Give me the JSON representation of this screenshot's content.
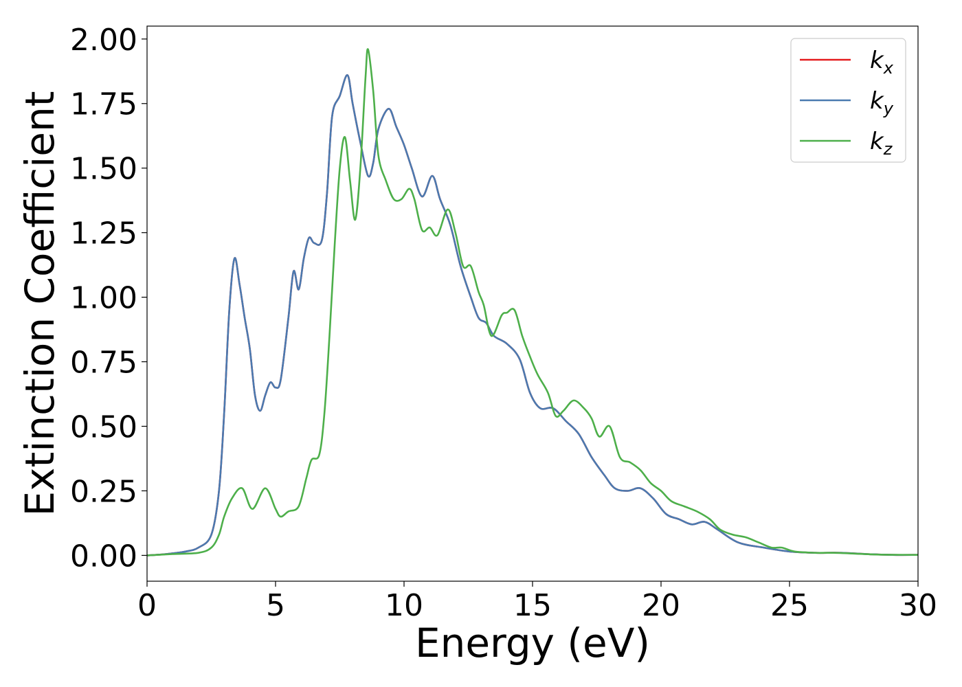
{
  "chart_data": {
    "type": "line",
    "xlabel": "Energy (eV)",
    "ylabel": "Extinction Coefficient",
    "xlim": [
      0,
      30
    ],
    "ylim": [
      -0.1,
      2.05
    ],
    "xticks": [
      0,
      5,
      10,
      15,
      20,
      25,
      30
    ],
    "xtick_labels": [
      "0",
      "5",
      "10",
      "15",
      "20",
      "25",
      "30"
    ],
    "yticks": [
      0,
      0.25,
      0.5,
      0.75,
      1.0,
      1.25,
      1.5,
      1.75,
      2.0
    ],
    "ytick_labels": [
      "0.00",
      "0.25",
      "0.50",
      "0.75",
      "1.00",
      "1.25",
      "1.50",
      "1.75",
      "2.00"
    ],
    "grid": false,
    "legend_position": "top-right",
    "series": [
      {
        "name": "k_x",
        "label_main": "k",
        "label_sub": "x",
        "color": "#e41a1c",
        "points": [
          [
            0,
            0
          ],
          [
            0.5,
            0.003
          ],
          [
            1.0,
            0.008
          ],
          [
            1.5,
            0.015
          ],
          [
            2.0,
            0.03
          ],
          [
            2.5,
            0.08
          ],
          [
            2.8,
            0.25
          ],
          [
            3.0,
            0.55
          ],
          [
            3.2,
            0.95
          ],
          [
            3.4,
            1.15
          ],
          [
            3.6,
            1.05
          ],
          [
            3.8,
            0.92
          ],
          [
            4.0,
            0.8
          ],
          [
            4.2,
            0.62
          ],
          [
            4.4,
            0.56
          ],
          [
            4.6,
            0.62
          ],
          [
            4.8,
            0.67
          ],
          [
            5.0,
            0.65
          ],
          [
            5.2,
            0.68
          ],
          [
            5.5,
            0.92
          ],
          [
            5.7,
            1.1
          ],
          [
            5.9,
            1.03
          ],
          [
            6.1,
            1.15
          ],
          [
            6.3,
            1.23
          ],
          [
            6.5,
            1.21
          ],
          [
            6.8,
            1.22
          ],
          [
            7.0,
            1.4
          ],
          [
            7.2,
            1.7
          ],
          [
            7.5,
            1.78
          ],
          [
            7.8,
            1.86
          ],
          [
            8.0,
            1.75
          ],
          [
            8.3,
            1.6
          ],
          [
            8.6,
            1.47
          ],
          [
            8.8,
            1.52
          ],
          [
            9.0,
            1.65
          ],
          [
            9.4,
            1.73
          ],
          [
            9.7,
            1.66
          ],
          [
            10.0,
            1.59
          ],
          [
            10.3,
            1.5
          ],
          [
            10.7,
            1.39
          ],
          [
            11.1,
            1.47
          ],
          [
            11.4,
            1.38
          ],
          [
            11.8,
            1.28
          ],
          [
            12.2,
            1.12
          ],
          [
            12.6,
            1.0
          ],
          [
            12.9,
            0.92
          ],
          [
            13.2,
            0.9
          ],
          [
            13.5,
            0.85
          ],
          [
            14.0,
            0.82
          ],
          [
            14.5,
            0.76
          ],
          [
            14.9,
            0.63
          ],
          [
            15.3,
            0.57
          ],
          [
            15.8,
            0.57
          ],
          [
            16.3,
            0.52
          ],
          [
            16.8,
            0.47
          ],
          [
            17.3,
            0.38
          ],
          [
            17.8,
            0.31
          ],
          [
            18.2,
            0.26
          ],
          [
            18.7,
            0.25
          ],
          [
            19.2,
            0.26
          ],
          [
            19.7,
            0.22
          ],
          [
            20.2,
            0.16
          ],
          [
            20.7,
            0.14
          ],
          [
            21.2,
            0.12
          ],
          [
            21.7,
            0.13
          ],
          [
            22.2,
            0.1
          ],
          [
            23.0,
            0.05
          ],
          [
            24.0,
            0.03
          ],
          [
            25.0,
            0.015
          ],
          [
            26.0,
            0.01
          ],
          [
            27.0,
            0.01
          ],
          [
            28.0,
            0.005
          ],
          [
            29.0,
            0.002
          ],
          [
            30.0,
            0.002
          ]
        ]
      },
      {
        "name": "k_y",
        "label_main": "k",
        "label_sub": "y",
        "color": "#4a7ab0",
        "points": [
          [
            0,
            0
          ],
          [
            0.5,
            0.003
          ],
          [
            1.0,
            0.008
          ],
          [
            1.5,
            0.015
          ],
          [
            2.0,
            0.03
          ],
          [
            2.5,
            0.08
          ],
          [
            2.8,
            0.25
          ],
          [
            3.0,
            0.55
          ],
          [
            3.2,
            0.95
          ],
          [
            3.4,
            1.15
          ],
          [
            3.6,
            1.05
          ],
          [
            3.8,
            0.92
          ],
          [
            4.0,
            0.8
          ],
          [
            4.2,
            0.62
          ],
          [
            4.4,
            0.56
          ],
          [
            4.6,
            0.62
          ],
          [
            4.8,
            0.67
          ],
          [
            5.0,
            0.65
          ],
          [
            5.2,
            0.68
          ],
          [
            5.5,
            0.92
          ],
          [
            5.7,
            1.1
          ],
          [
            5.9,
            1.03
          ],
          [
            6.1,
            1.15
          ],
          [
            6.3,
            1.23
          ],
          [
            6.5,
            1.21
          ],
          [
            6.8,
            1.22
          ],
          [
            7.0,
            1.4
          ],
          [
            7.2,
            1.7
          ],
          [
            7.5,
            1.78
          ],
          [
            7.8,
            1.86
          ],
          [
            8.0,
            1.75
          ],
          [
            8.3,
            1.6
          ],
          [
            8.6,
            1.47
          ],
          [
            8.8,
            1.52
          ],
          [
            9.0,
            1.65
          ],
          [
            9.4,
            1.73
          ],
          [
            9.7,
            1.66
          ],
          [
            10.0,
            1.59
          ],
          [
            10.3,
            1.5
          ],
          [
            10.7,
            1.39
          ],
          [
            11.1,
            1.47
          ],
          [
            11.4,
            1.38
          ],
          [
            11.8,
            1.28
          ],
          [
            12.2,
            1.12
          ],
          [
            12.6,
            1.0
          ],
          [
            12.9,
            0.92
          ],
          [
            13.2,
            0.9
          ],
          [
            13.5,
            0.85
          ],
          [
            14.0,
            0.82
          ],
          [
            14.5,
            0.76
          ],
          [
            14.9,
            0.63
          ],
          [
            15.3,
            0.57
          ],
          [
            15.8,
            0.57
          ],
          [
            16.3,
            0.52
          ],
          [
            16.8,
            0.47
          ],
          [
            17.3,
            0.38
          ],
          [
            17.8,
            0.31
          ],
          [
            18.2,
            0.26
          ],
          [
            18.7,
            0.25
          ],
          [
            19.2,
            0.26
          ],
          [
            19.7,
            0.22
          ],
          [
            20.2,
            0.16
          ],
          [
            20.7,
            0.14
          ],
          [
            21.2,
            0.12
          ],
          [
            21.7,
            0.13
          ],
          [
            22.2,
            0.1
          ],
          [
            23.0,
            0.05
          ],
          [
            24.0,
            0.03
          ],
          [
            25.0,
            0.015
          ],
          [
            26.0,
            0.01
          ],
          [
            27.0,
            0.01
          ],
          [
            28.0,
            0.005
          ],
          [
            29.0,
            0.002
          ],
          [
            30.0,
            0.002
          ]
        ]
      },
      {
        "name": "k_z",
        "label_main": "k",
        "label_sub": "z",
        "color": "#4daf4a",
        "points": [
          [
            0,
            0
          ],
          [
            1.0,
            0.005
          ],
          [
            2.0,
            0.01
          ],
          [
            2.5,
            0.03
          ],
          [
            2.8,
            0.08
          ],
          [
            3.0,
            0.15
          ],
          [
            3.3,
            0.22
          ],
          [
            3.7,
            0.26
          ],
          [
            4.1,
            0.18
          ],
          [
            4.6,
            0.26
          ],
          [
            5.0,
            0.18
          ],
          [
            5.2,
            0.15
          ],
          [
            5.5,
            0.17
          ],
          [
            5.9,
            0.19
          ],
          [
            6.2,
            0.3
          ],
          [
            6.4,
            0.37
          ],
          [
            6.7,
            0.39
          ],
          [
            6.9,
            0.55
          ],
          [
            7.1,
            0.85
          ],
          [
            7.3,
            1.2
          ],
          [
            7.5,
            1.5
          ],
          [
            7.7,
            1.62
          ],
          [
            7.9,
            1.45
          ],
          [
            8.1,
            1.3
          ],
          [
            8.3,
            1.5
          ],
          [
            8.5,
            1.85
          ],
          [
            8.6,
            1.96
          ],
          [
            8.8,
            1.8
          ],
          [
            9.0,
            1.55
          ],
          [
            9.3,
            1.45
          ],
          [
            9.6,
            1.38
          ],
          [
            9.9,
            1.38
          ],
          [
            10.2,
            1.42
          ],
          [
            10.4,
            1.38
          ],
          [
            10.7,
            1.26
          ],
          [
            11.0,
            1.27
          ],
          [
            11.3,
            1.24
          ],
          [
            11.7,
            1.34
          ],
          [
            12.0,
            1.25
          ],
          [
            12.3,
            1.12
          ],
          [
            12.6,
            1.12
          ],
          [
            12.9,
            1.02
          ],
          [
            13.1,
            0.97
          ],
          [
            13.4,
            0.85
          ],
          [
            13.8,
            0.93
          ],
          [
            14.0,
            0.94
          ],
          [
            14.3,
            0.95
          ],
          [
            14.6,
            0.85
          ],
          [
            14.9,
            0.77
          ],
          [
            15.2,
            0.7
          ],
          [
            15.6,
            0.63
          ],
          [
            15.9,
            0.54
          ],
          [
            16.2,
            0.56
          ],
          [
            16.6,
            0.6
          ],
          [
            17.0,
            0.57
          ],
          [
            17.3,
            0.53
          ],
          [
            17.6,
            0.46
          ],
          [
            18.0,
            0.5
          ],
          [
            18.4,
            0.38
          ],
          [
            18.8,
            0.36
          ],
          [
            19.2,
            0.33
          ],
          [
            19.6,
            0.28
          ],
          [
            20.0,
            0.25
          ],
          [
            20.4,
            0.21
          ],
          [
            20.9,
            0.19
          ],
          [
            21.4,
            0.17
          ],
          [
            21.9,
            0.14
          ],
          [
            22.3,
            0.1
          ],
          [
            22.8,
            0.08
          ],
          [
            23.3,
            0.07
          ],
          [
            23.8,
            0.05
          ],
          [
            24.3,
            0.03
          ],
          [
            24.7,
            0.03
          ],
          [
            25.2,
            0.015
          ],
          [
            26.0,
            0.01
          ],
          [
            26.7,
            0.01
          ],
          [
            27.5,
            0.007
          ],
          [
            28.5,
            0.003
          ],
          [
            30.0,
            0.002
          ]
        ]
      }
    ]
  }
}
